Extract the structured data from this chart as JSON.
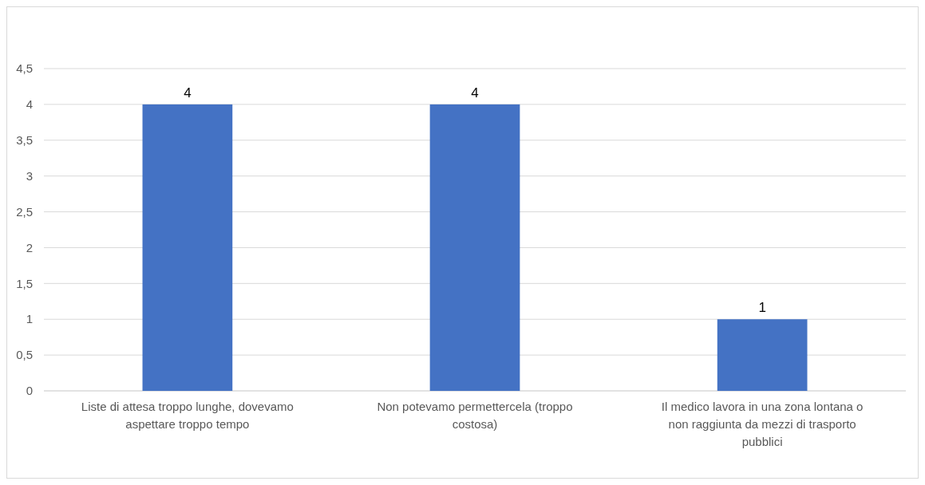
{
  "chart_data": {
    "type": "bar",
    "categories": [
      "Liste di attesa troppo lunghe, dovevamo aspettare troppo tempo",
      "Non potevamo permettercela (troppo costosa)",
      "Il medico lavora in una zona lontana o non raggiunta da mezzi di trasporto pubblici"
    ],
    "values": [
      4,
      4,
      1
    ],
    "color": "#4472c4",
    "ylim": [
      0,
      4.5
    ],
    "yticks": [
      0,
      {
        "value": 0.5,
        "label": "0,5"
      },
      1,
      {
        "value": 1.5,
        "label": "1,5"
      },
      2,
      {
        "value": 2.5,
        "label": "2,5"
      },
      3,
      {
        "value": 3.5,
        "label": "3,5"
      },
      4,
      {
        "value": 4.5,
        "label": "4,5"
      }
    ],
    "grid": "y",
    "data_labels": true
  }
}
